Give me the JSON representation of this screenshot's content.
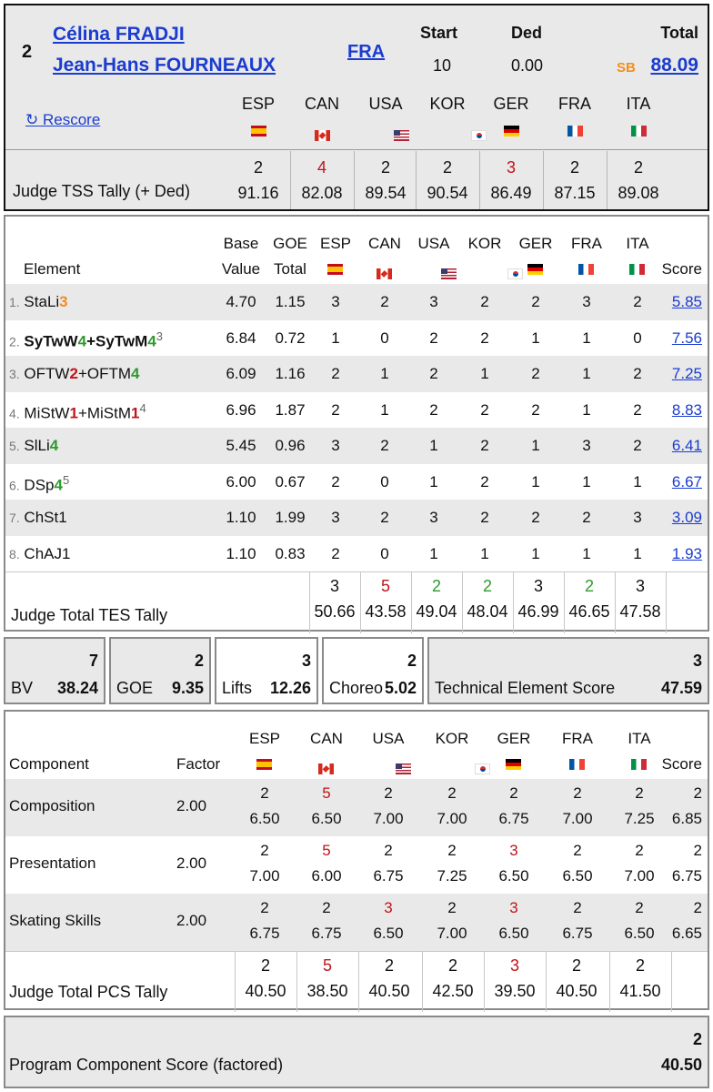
{
  "header": {
    "rank": "2",
    "skater1": "Célina FRADJI",
    "skater2": "Jean-Hans FOURNEAUX",
    "nation": "FRA",
    "start_label": "Start",
    "start_value": "10",
    "ded_label": "Ded",
    "ded_value": "0.00",
    "total_label": "Total",
    "sb_badge": "SB",
    "total_value": "88.09",
    "rescore_icon": "↻",
    "rescore_label": "Rescore",
    "tss_label": "Judge TSS Tally (+ Ded)"
  },
  "judges": [
    {
      "code": "ESP",
      "flag": "flag-ESP",
      "tss_count": "2",
      "tss_score": "91.16",
      "tss_color": "",
      "tes_count": "3",
      "tes_score": "50.66",
      "tes_color": "",
      "pcs_count": "2",
      "pcs_score": "40.50",
      "pcs_color": ""
    },
    {
      "code": "CAN",
      "flag": "flag-CAN",
      "tss_count": "4",
      "tss_score": "82.08",
      "tss_color": "red",
      "tes_count": "5",
      "tes_score": "43.58",
      "tes_color": "red",
      "pcs_count": "5",
      "pcs_score": "38.50",
      "pcs_color": "red"
    },
    {
      "code": "USA",
      "flag": "flag-USA",
      "tss_count": "2",
      "tss_score": "89.54",
      "tss_color": "",
      "tes_count": "2",
      "tes_score": "49.04",
      "tes_color": "green",
      "pcs_count": "2",
      "pcs_score": "40.50",
      "pcs_color": ""
    },
    {
      "code": "KOR",
      "flag": "flag-KOR",
      "tss_count": "2",
      "tss_score": "90.54",
      "tss_color": "",
      "tes_count": "2",
      "tes_score": "48.04",
      "tes_color": "green",
      "pcs_count": "2",
      "pcs_score": "42.50",
      "pcs_color": ""
    },
    {
      "code": "GER",
      "flag": "flag-GER",
      "tss_count": "3",
      "tss_score": "86.49",
      "tss_color": "red",
      "tes_count": "3",
      "tes_score": "46.99",
      "tes_color": "",
      "pcs_count": "3",
      "pcs_score": "39.50",
      "pcs_color": "red"
    },
    {
      "code": "FRA",
      "flag": "flag-FRA",
      "tss_count": "2",
      "tss_score": "87.15",
      "tss_color": "",
      "tes_count": "2",
      "tes_score": "46.65",
      "tes_color": "green",
      "pcs_count": "2",
      "pcs_score": "40.50",
      "pcs_color": ""
    },
    {
      "code": "ITA",
      "flag": "flag-ITA",
      "tss_count": "2",
      "tss_score": "89.08",
      "tss_color": "",
      "tes_count": "3",
      "tes_score": "47.58",
      "tes_color": "",
      "pcs_count": "2",
      "pcs_score": "41.50",
      "pcs_color": ""
    }
  ],
  "elements_table": {
    "col_element": "Element",
    "col_base1": "Base",
    "col_base2": "Value",
    "col_goe1": "GOE",
    "col_goe2": "Total",
    "col_score": "Score",
    "tes_tally_label": "Judge Total TES Tally",
    "rows": [
      {
        "num": "1.",
        "parts": [
          {
            "t": "StaLi",
            "c": ""
          },
          {
            "t": "3",
            "c": "orange"
          }
        ],
        "sup": "",
        "bold": false,
        "base": "4.70",
        "goe": "1.15",
        "marks": [
          "3",
          "2",
          "3",
          "2",
          "2",
          "3",
          "2"
        ],
        "score": "5.85"
      },
      {
        "num": "2.",
        "parts": [
          {
            "t": "SyTwW",
            "c": ""
          },
          {
            "t": "4",
            "c": "green"
          },
          {
            "t": "+SyTwM",
            "c": ""
          },
          {
            "t": "4",
            "c": "green"
          }
        ],
        "sup": "3",
        "bold": true,
        "base": "6.84",
        "goe": "0.72",
        "marks": [
          "1",
          "0",
          "2",
          "2",
          "1",
          "1",
          "0"
        ],
        "score": "7.56"
      },
      {
        "num": "3.",
        "parts": [
          {
            "t": "OFTW",
            "c": ""
          },
          {
            "t": "2",
            "c": "red"
          },
          {
            "t": "+OFTM",
            "c": ""
          },
          {
            "t": "4",
            "c": "green"
          }
        ],
        "sup": "",
        "bold": false,
        "base": "6.09",
        "goe": "1.16",
        "marks": [
          "2",
          "1",
          "2",
          "1",
          "2",
          "1",
          "2"
        ],
        "score": "7.25"
      },
      {
        "num": "4.",
        "parts": [
          {
            "t": "MiStW",
            "c": ""
          },
          {
            "t": "1",
            "c": "red"
          },
          {
            "t": "+MiStM",
            "c": ""
          },
          {
            "t": "1",
            "c": "red"
          }
        ],
        "sup": "4",
        "bold": false,
        "base": "6.96",
        "goe": "1.87",
        "marks": [
          "2",
          "1",
          "2",
          "2",
          "2",
          "1",
          "2"
        ],
        "score": "8.83"
      },
      {
        "num": "5.",
        "parts": [
          {
            "t": "SlLi",
            "c": ""
          },
          {
            "t": "4",
            "c": "green"
          }
        ],
        "sup": "",
        "bold": false,
        "base": "5.45",
        "goe": "0.96",
        "marks": [
          "3",
          "2",
          "1",
          "2",
          "1",
          "3",
          "2"
        ],
        "score": "6.41"
      },
      {
        "num": "6.",
        "parts": [
          {
            "t": "DSp",
            "c": ""
          },
          {
            "t": "4",
            "c": "green"
          }
        ],
        "sup": "5",
        "bold": false,
        "base": "6.00",
        "goe": "0.67",
        "marks": [
          "2",
          "0",
          "1",
          "2",
          "1",
          "1",
          "1"
        ],
        "score": "6.67"
      },
      {
        "num": "7.",
        "parts": [
          {
            "t": "ChSt1",
            "c": ""
          }
        ],
        "sup": "",
        "bold": false,
        "base": "1.10",
        "goe": "1.99",
        "marks": [
          "3",
          "2",
          "3",
          "2",
          "2",
          "2",
          "3"
        ],
        "score": "3.09"
      },
      {
        "num": "8.",
        "parts": [
          {
            "t": "ChAJ1",
            "c": ""
          }
        ],
        "sup": "",
        "bold": false,
        "base": "1.10",
        "goe": "0.83",
        "marks": [
          "2",
          "0",
          "1",
          "1",
          "1",
          "1",
          "1"
        ],
        "score": "1.93"
      }
    ]
  },
  "summary": {
    "bv": {
      "count": "7",
      "label": "BV",
      "value": "38.24"
    },
    "goe": {
      "count": "2",
      "label": "GOE",
      "value": "9.35"
    },
    "lifts": {
      "count": "3",
      "label": "Lifts",
      "value": "12.26"
    },
    "choreo": {
      "count": "2",
      "label": "Choreo",
      "value": "5.02"
    },
    "tes": {
      "count": "3",
      "label": "Technical Element Score",
      "value": "47.59"
    }
  },
  "pcs_table": {
    "col_component": "Component",
    "col_factor": "Factor",
    "col_score": "Score",
    "pcs_tally_label": "Judge Total PCS Tally",
    "rows": [
      {
        "name": "Composition",
        "factor": "2.00",
        "counts": [
          "2",
          "5",
          "2",
          "2",
          "2",
          "2",
          "2"
        ],
        "count_colors": [
          "",
          "red",
          "",
          "",
          "",
          "",
          ""
        ],
        "marks": [
          "6.50",
          "6.50",
          "7.00",
          "7.00",
          "6.75",
          "7.00",
          "7.25"
        ],
        "score_count": "2",
        "score": "6.85"
      },
      {
        "name": "Presentation",
        "factor": "2.00",
        "counts": [
          "2",
          "5",
          "2",
          "2",
          "3",
          "2",
          "2"
        ],
        "count_colors": [
          "",
          "red",
          "",
          "",
          "red",
          "",
          ""
        ],
        "marks": [
          "7.00",
          "6.00",
          "6.75",
          "7.25",
          "6.50",
          "6.50",
          "7.00"
        ],
        "score_count": "2",
        "score": "6.75"
      },
      {
        "name": "Skating Skills",
        "factor": "2.00",
        "counts": [
          "2",
          "2",
          "3",
          "2",
          "3",
          "2",
          "2"
        ],
        "count_colors": [
          "",
          "",
          "red",
          "",
          "red",
          "",
          ""
        ],
        "marks": [
          "6.75",
          "6.75",
          "6.50",
          "7.00",
          "6.50",
          "6.75",
          "6.50"
        ],
        "score_count": "2",
        "score": "6.65"
      }
    ]
  },
  "pcs_total": {
    "count": "2",
    "label": "Program Component Score (factored)",
    "value": "40.50"
  }
}
